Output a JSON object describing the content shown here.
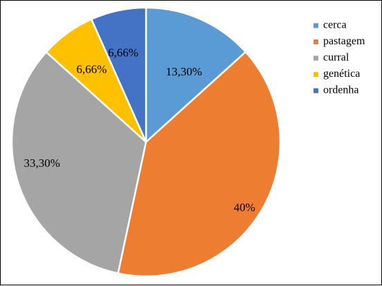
{
  "chart_data": {
    "type": "pie",
    "title": "",
    "start_angle_deg": 0,
    "direction": "clockwise",
    "legend_position": "top-right",
    "slices": [
      {
        "label": "cerca",
        "value": 13.3,
        "display": "13,30%",
        "color": "#5B9BD5"
      },
      {
        "label": "pastagem",
        "value": 40,
        "display": "40%",
        "color": "#ED7D31"
      },
      {
        "label": "curral",
        "value": 33.3,
        "display": "33,30%",
        "color": "#A5A5A5"
      },
      {
        "label": "genética",
        "value": 6.66,
        "display": "6,66%",
        "color": "#FFC000"
      },
      {
        "label": "ordenha",
        "value": 6.66,
        "display": "6,66%",
        "color": "#4472C4"
      }
    ]
  }
}
